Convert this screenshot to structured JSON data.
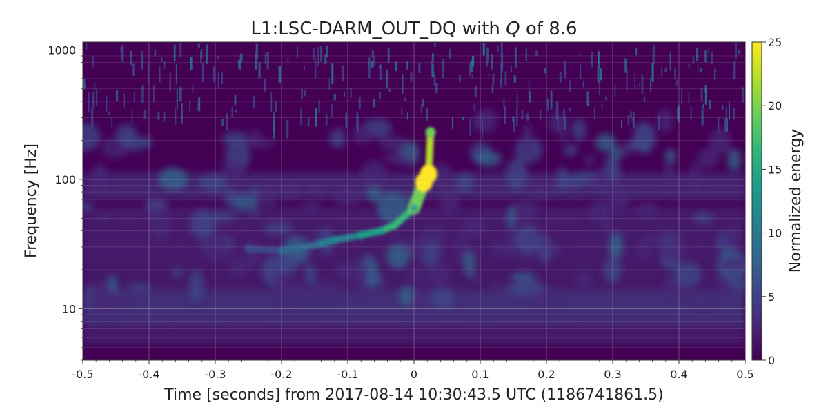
{
  "chart_data": {
    "type": "heatmap",
    "title": {
      "prefix": "L1:LSC-DARM_OUT_DQ with ",
      "q_symbol": "Q",
      "suffix": " of 8.6"
    },
    "xlabel": "Time [seconds] from 2017-08-14 10:30:43.5 UTC (1186741861.5)",
    "ylabel": "Frequency [Hz]",
    "colorbar_label": "Normalized energy",
    "x_range": [
      -0.5,
      0.5
    ],
    "x_ticks": [
      -0.5,
      -0.4,
      -0.3,
      -0.2,
      -0.1,
      0,
      0.1,
      0.2,
      0.3,
      0.4,
      0.5
    ],
    "x_tick_labels": [
      "-0.5",
      "-0.4",
      "-0.3",
      "-0.2",
      "-0.1",
      "0",
      "0.1",
      "0.2",
      "0.3",
      "0.4",
      "0.5"
    ],
    "y_scale": "log",
    "y_range": [
      4,
      1150
    ],
    "y_ticks": [
      10,
      100,
      1000
    ],
    "y_tick_labels": [
      "10",
      "100",
      "1000"
    ],
    "color_range": [
      0,
      25
    ],
    "color_ticks": [
      0,
      5,
      10,
      15,
      20,
      25
    ],
    "color_tick_labels": [
      "0",
      "5",
      "10",
      "15",
      "20",
      "25"
    ],
    "colormap": [
      "#440154",
      "#482878",
      "#3e4989",
      "#31688e",
      "#26828e",
      "#1f9e89",
      "#35b779",
      "#6ece58",
      "#b5de2b",
      "#fde725"
    ],
    "grid": true,
    "chirp_track": [
      {
        "t": -0.25,
        "f": 29,
        "e": 5
      },
      {
        "t": -0.2,
        "f": 28,
        "e": 7
      },
      {
        "t": -0.15,
        "f": 31,
        "e": 9
      },
      {
        "t": -0.12,
        "f": 34,
        "e": 11
      },
      {
        "t": -0.08,
        "f": 37,
        "e": 13
      },
      {
        "t": -0.05,
        "f": 40,
        "e": 15
      },
      {
        "t": -0.03,
        "f": 44,
        "e": 17
      },
      {
        "t": 0.0,
        "f": 60,
        "e": 14
      },
      {
        "t": 0.015,
        "f": 95,
        "e": 25
      },
      {
        "t": 0.022,
        "f": 110,
        "e": 25
      },
      {
        "t": 0.025,
        "f": 230,
        "e": 19
      }
    ]
  }
}
